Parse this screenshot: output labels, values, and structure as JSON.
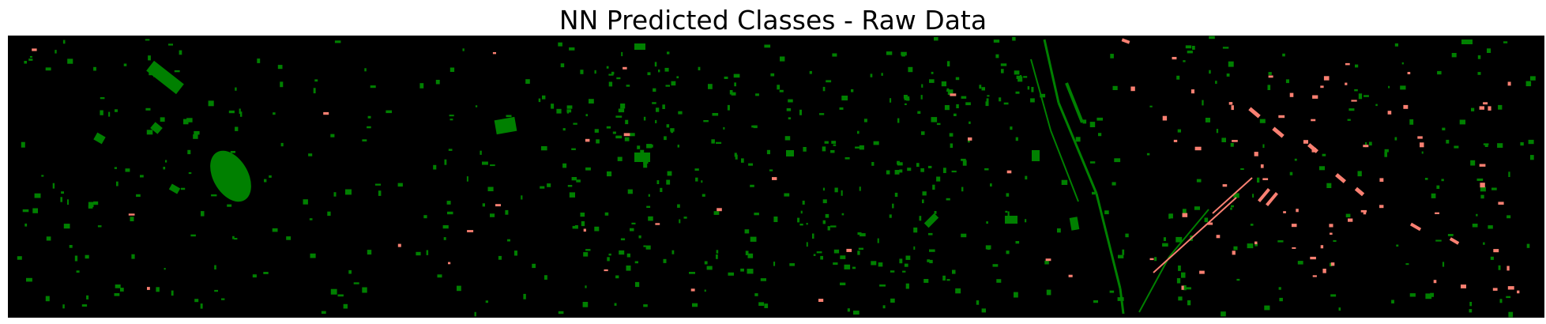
{
  "figure": {
    "title": "NN Predicted Classes - Raw Data"
  },
  "colors": {
    "background": "#000000",
    "class_a": "#008000",
    "class_b": "#fa8072"
  }
}
